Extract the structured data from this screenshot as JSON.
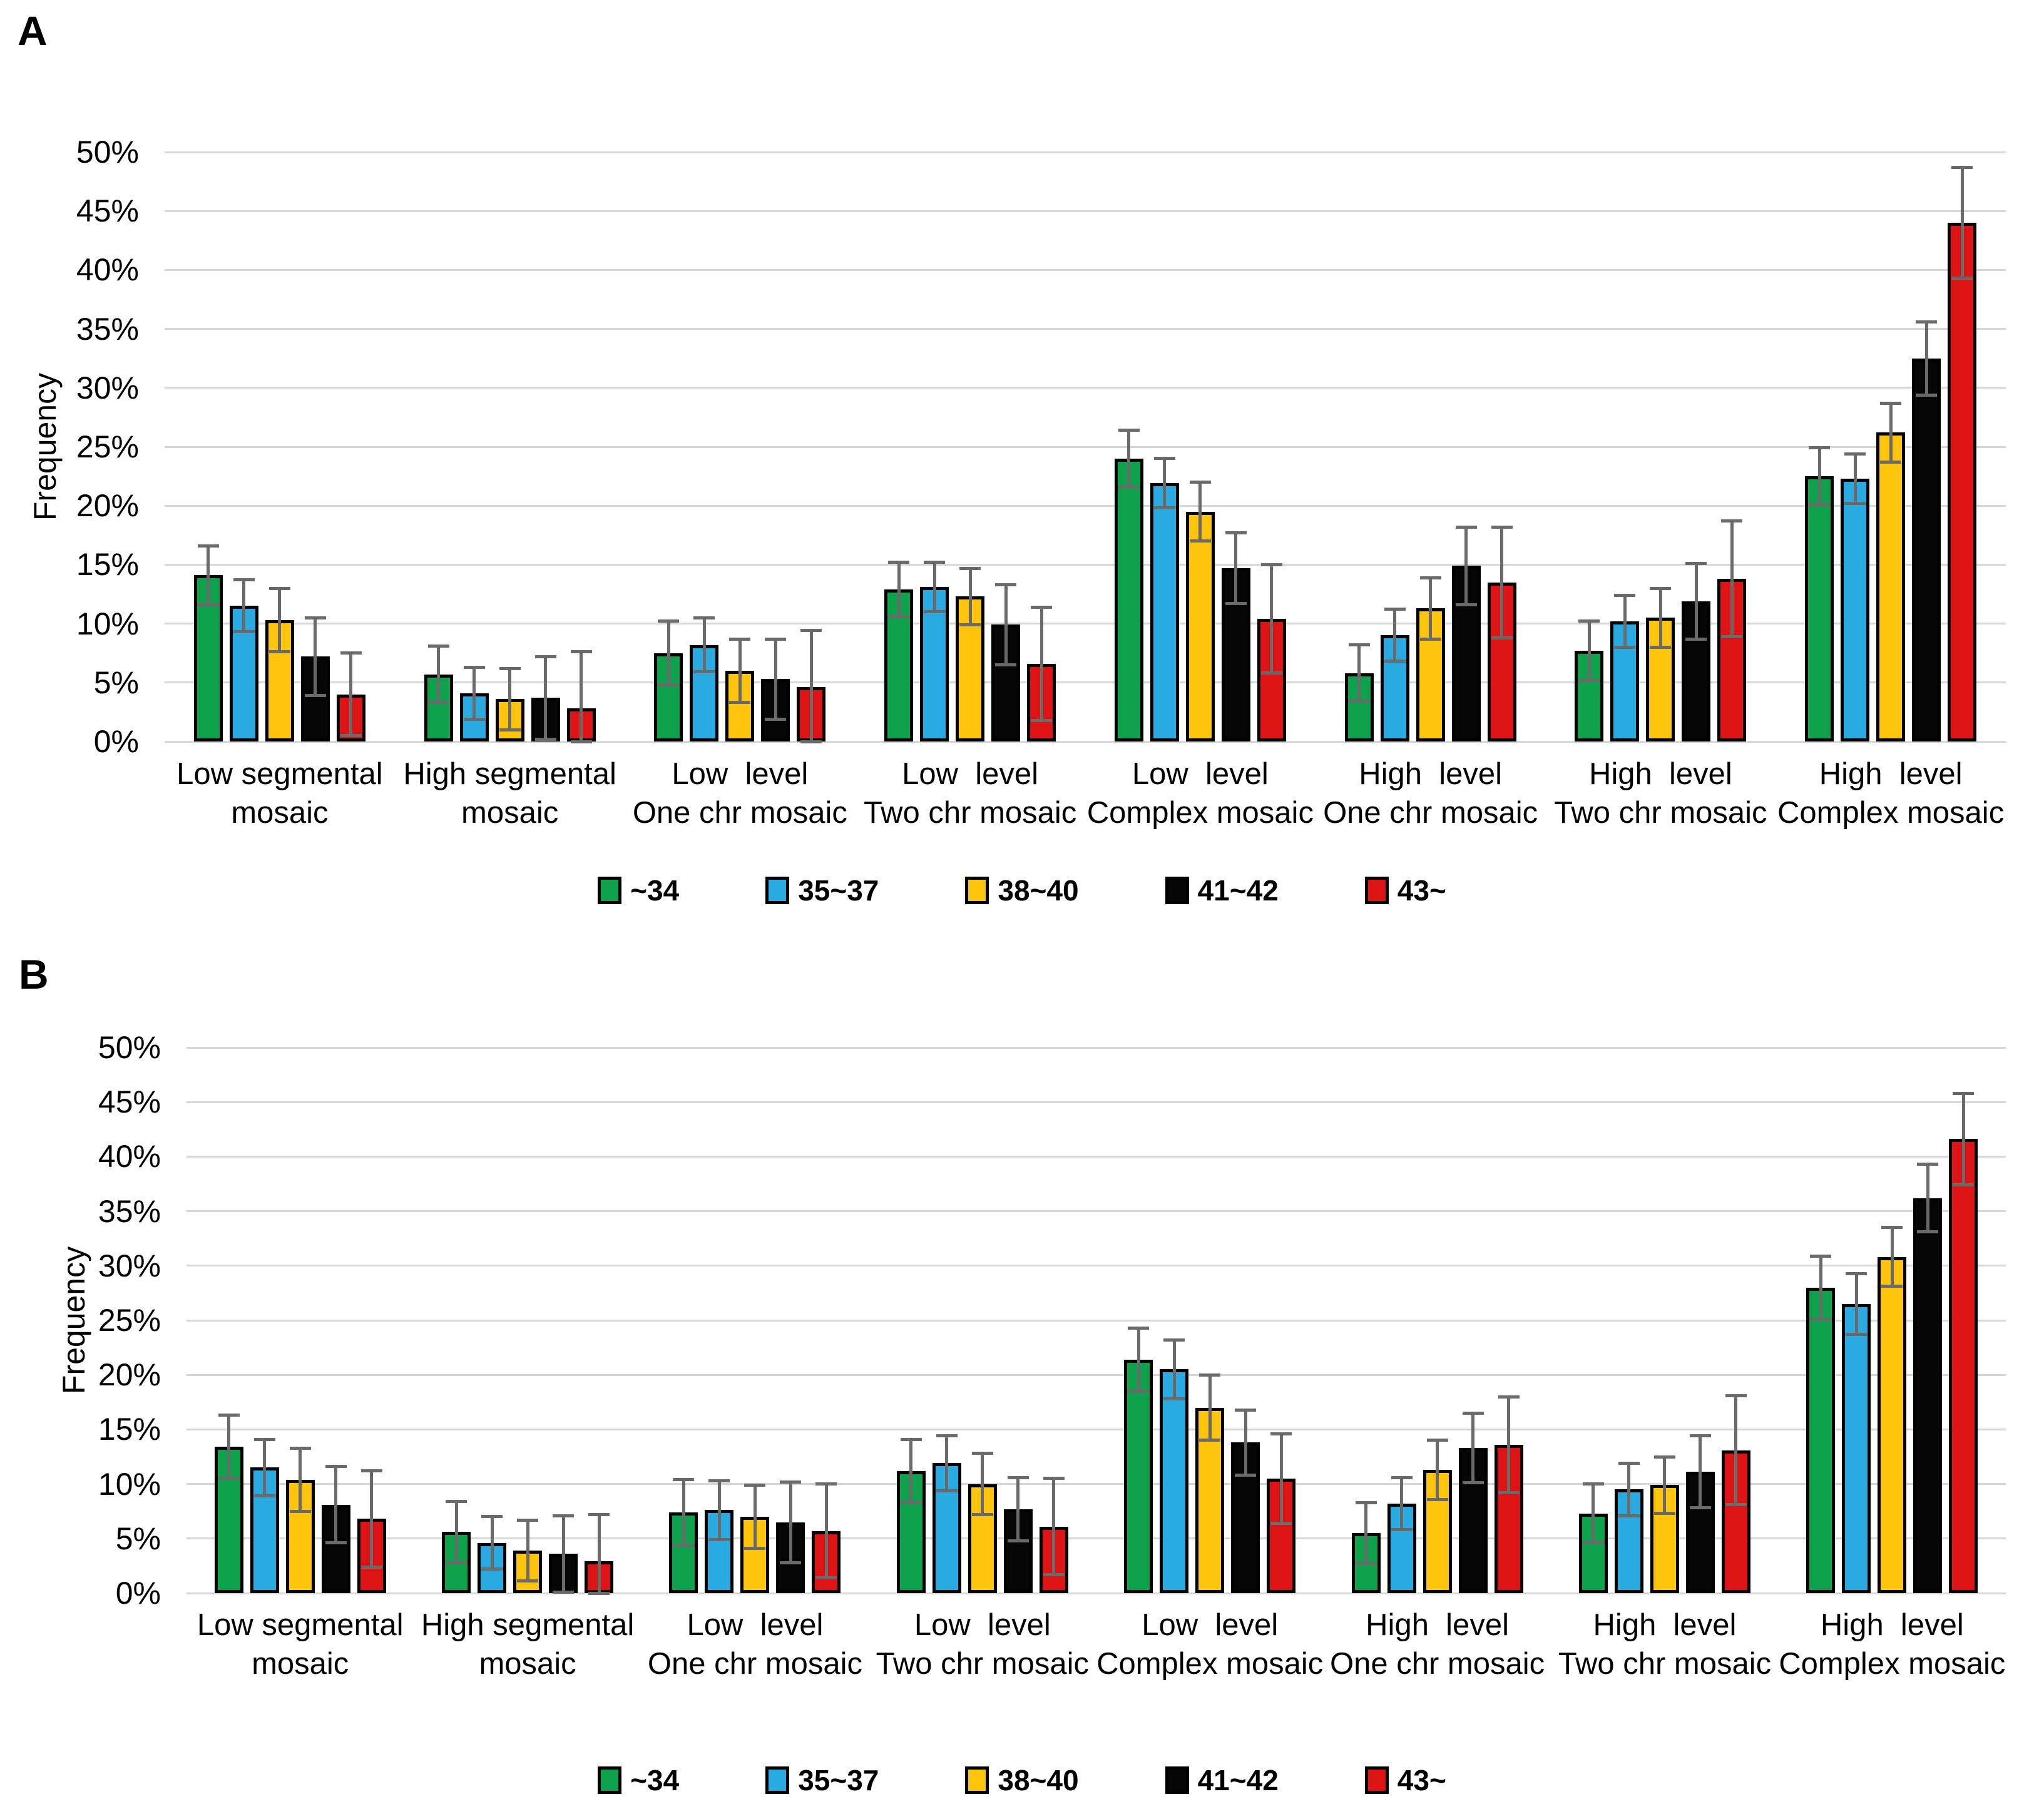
{
  "figure": {
    "background_color": "#ffffff",
    "grid_color": "#d6d6d6",
    "error_bar_color": "#6a6a6a",
    "bar_outline_color": "#000000"
  },
  "chart_data": [
    {
      "panel": "A",
      "type": "bar",
      "ylabel": "Frequency",
      "ylim": [
        0,
        50
      ],
      "ytick_step": 5,
      "ytick_labels": [
        "0%",
        "5%",
        "10%",
        "15%",
        "20%",
        "25%",
        "30%",
        "35%",
        "40%",
        "45%",
        "50%"
      ],
      "grid": true,
      "legend_position": "bottom",
      "categories": [
        {
          "line1": "Low segmental",
          "line2": "mosaic"
        },
        {
          "line1": "High segmental",
          "line2": "mosaic"
        },
        {
          "line1": "Low  level",
          "line2": "One chr mosaic"
        },
        {
          "line1": "Low  level",
          "line2": "Two chr mosaic"
        },
        {
          "line1": "Low  level",
          "line2": "Complex mosaic"
        },
        {
          "line1": "High  level",
          "line2": "One chr mosaic"
        },
        {
          "line1": "High  level",
          "line2": "Two chr mosaic"
        },
        {
          "line1": "High  level",
          "line2": "Complex mosaic"
        }
      ],
      "series": [
        {
          "name": "~34",
          "color": "#0fa24d",
          "values": [
            14.1,
            5.7,
            7.5,
            12.9,
            24.0,
            5.8,
            7.7,
            22.5
          ],
          "errors": [
            2.5,
            2.4,
            2.7,
            2.3,
            2.4,
            2.4,
            2.5,
            2.4
          ]
        },
        {
          "name": "35~37",
          "color": "#29abe2",
          "values": [
            11.5,
            4.1,
            8.2,
            13.1,
            21.9,
            9.0,
            10.2,
            22.3
          ],
          "errors": [
            2.2,
            2.2,
            2.3,
            2.1,
            2.1,
            2.2,
            2.2,
            2.1
          ]
        },
        {
          "name": "38~40",
          "color": "#ffc40c",
          "values": [
            10.3,
            3.6,
            6.0,
            12.3,
            19.5,
            11.3,
            10.5,
            26.2
          ],
          "errors": [
            2.7,
            2.6,
            2.7,
            2.4,
            2.5,
            2.6,
            2.5,
            2.5
          ]
        },
        {
          "name": "41~42",
          "color": "#060606",
          "values": [
            7.2,
            3.7,
            5.3,
            9.9,
            14.7,
            14.9,
            11.9,
            32.5
          ],
          "errors": [
            3.3,
            3.5,
            3.4,
            3.4,
            3.0,
            3.3,
            3.2,
            3.1
          ]
        },
        {
          "name": "43~",
          "color": "#de1414",
          "values": [
            4.0,
            2.8,
            4.6,
            6.6,
            10.4,
            13.5,
            13.8,
            44.0
          ],
          "errors": [
            3.5,
            4.8,
            4.8,
            4.8,
            4.6,
            4.7,
            4.9,
            4.7
          ]
        }
      ]
    },
    {
      "panel": "B",
      "type": "bar",
      "ylabel": "Frequency",
      "ylim": [
        0,
        50
      ],
      "ytick_step": 5,
      "ytick_labels": [
        "0%",
        "5%",
        "10%",
        "15%",
        "20%",
        "25%",
        "30%",
        "35%",
        "40%",
        "45%",
        "50%"
      ],
      "grid": true,
      "legend_position": "bottom",
      "categories": [
        {
          "line1": "Low segmental",
          "line2": "mosaic"
        },
        {
          "line1": "High segmental",
          "line2": "mosaic"
        },
        {
          "line1": "Low  level",
          "line2": "One chr mosaic"
        },
        {
          "line1": "Low  level",
          "line2": "Two chr mosaic"
        },
        {
          "line1": "Low  level",
          "line2": "Complex mosaic"
        },
        {
          "line1": "High  level",
          "line2": "One chr mosaic"
        },
        {
          "line1": "High  level",
          "line2": "Two chr mosaic"
        },
        {
          "line1": "High  level",
          "line2": "Complex mosaic"
        }
      ],
      "series": [
        {
          "name": "~34",
          "color": "#0fa24d",
          "values": [
            13.4,
            5.6,
            7.4,
            11.2,
            21.4,
            5.5,
            7.3,
            28.0
          ],
          "errors": [
            2.9,
            2.8,
            3.0,
            2.9,
            2.9,
            2.8,
            2.7,
            2.9
          ]
        },
        {
          "name": "35~37",
          "color": "#29abe2",
          "values": [
            11.5,
            4.6,
            7.6,
            11.9,
            20.5,
            8.2,
            9.5,
            26.5
          ],
          "errors": [
            2.6,
            2.4,
            2.7,
            2.5,
            2.7,
            2.4,
            2.4,
            2.8
          ]
        },
        {
          "name": "38~40",
          "color": "#ffc40c",
          "values": [
            10.4,
            3.9,
            7.0,
            10.0,
            17.0,
            11.3,
            9.9,
            30.8
          ],
          "errors": [
            2.9,
            2.8,
            2.9,
            2.8,
            3.0,
            2.7,
            2.6,
            2.7
          ]
        },
        {
          "name": "41~42",
          "color": "#060606",
          "values": [
            8.1,
            3.6,
            6.5,
            7.7,
            13.8,
            13.3,
            11.1,
            36.2
          ],
          "errors": [
            3.5,
            3.5,
            3.7,
            2.9,
            3.0,
            3.2,
            3.3,
            3.1
          ]
        },
        {
          "name": "43~",
          "color": "#de1414",
          "values": [
            6.8,
            2.9,
            5.7,
            6.1,
            10.5,
            13.6,
            13.1,
            41.6
          ],
          "errors": [
            4.4,
            4.3,
            4.3,
            4.4,
            4.1,
            4.4,
            5.0,
            4.2
          ]
        }
      ]
    }
  ]
}
